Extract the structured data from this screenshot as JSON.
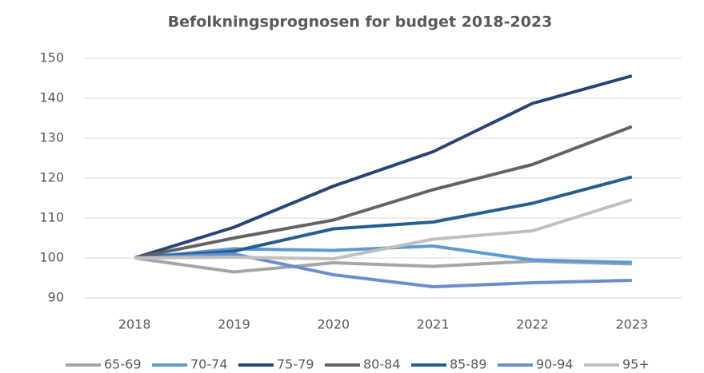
{
  "chart_data": {
    "type": "line",
    "title": "Befolkningsprognosen for budget 2018-2023",
    "categories": [
      "2018",
      "2019",
      "2020",
      "2021",
      "2022",
      "2023"
    ],
    "series": [
      {
        "name": "65-69",
        "color": "#a5a5a5",
        "values": [
          100,
          96.5,
          98.8,
          97.9,
          99.2,
          98.5
        ]
      },
      {
        "name": "70-74",
        "color": "#5b9bd5",
        "values": [
          100,
          102.3,
          101.9,
          103,
          99.5,
          98.9
        ]
      },
      {
        "name": "75-79",
        "color": "#264478",
        "values": [
          100,
          107.7,
          118,
          126.6,
          138.7,
          145.6
        ]
      },
      {
        "name": "80-84",
        "color": "#636363",
        "values": [
          100,
          105,
          109.5,
          117.1,
          123.4,
          132.9
        ]
      },
      {
        "name": "85-89",
        "color": "#255e91",
        "values": [
          100,
          101.7,
          107.3,
          109,
          113.7,
          120.3
        ]
      },
      {
        "name": "90-94",
        "color": "#698ed0",
        "values": [
          100,
          101,
          95.8,
          92.8,
          93.8,
          94.4
        ]
      },
      {
        "name": "95+",
        "color": "#bfbfbf",
        "values": [
          100,
          100.2,
          99.8,
          104.7,
          106.8,
          114.6
        ]
      }
    ],
    "ylim": [
      90,
      150
    ],
    "yticks": [
      90,
      100,
      110,
      120,
      130,
      140,
      150
    ],
    "grid": true,
    "legend": "bottom"
  }
}
